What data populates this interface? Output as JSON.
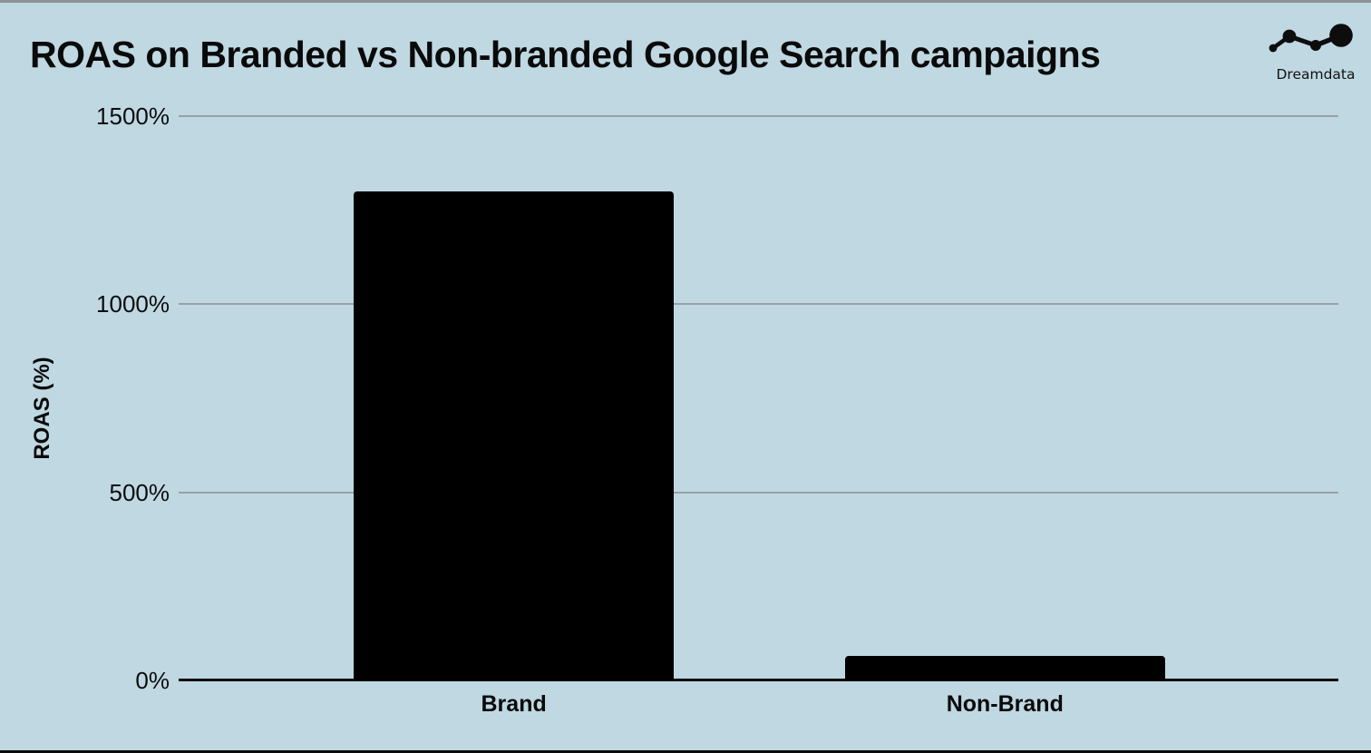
{
  "logo": {
    "text": "Dreamdata",
    "color": "#121212"
  },
  "colors": {
    "background": "#bfd8e2",
    "bar": "#000000",
    "gridline": "#9aa1a6",
    "axis": "#0a0a0a",
    "text": "#0a0a0a"
  },
  "chart_data": {
    "type": "bar",
    "title": "ROAS on Branded vs Non-branded Google Search campaigns",
    "categories": [
      "Brand",
      "Non-Brand"
    ],
    "values": [
      1300,
      65
    ],
    "xlabel": "",
    "ylabel": "ROAS (%)",
    "ylim": [
      0,
      1500
    ],
    "yticks": [
      0,
      500,
      1000,
      1500
    ],
    "ytick_labels": [
      "0%",
      "500%",
      "1000%",
      "1500%"
    ],
    "grid": true,
    "legend": false,
    "bar_color": "#000000",
    "background_color": "#bfd8e2",
    "gridline_color": "#9aa1a6",
    "bar_center_fracs": [
      0.289,
      0.7125
    ],
    "bar_width_frac": 0.276
  }
}
